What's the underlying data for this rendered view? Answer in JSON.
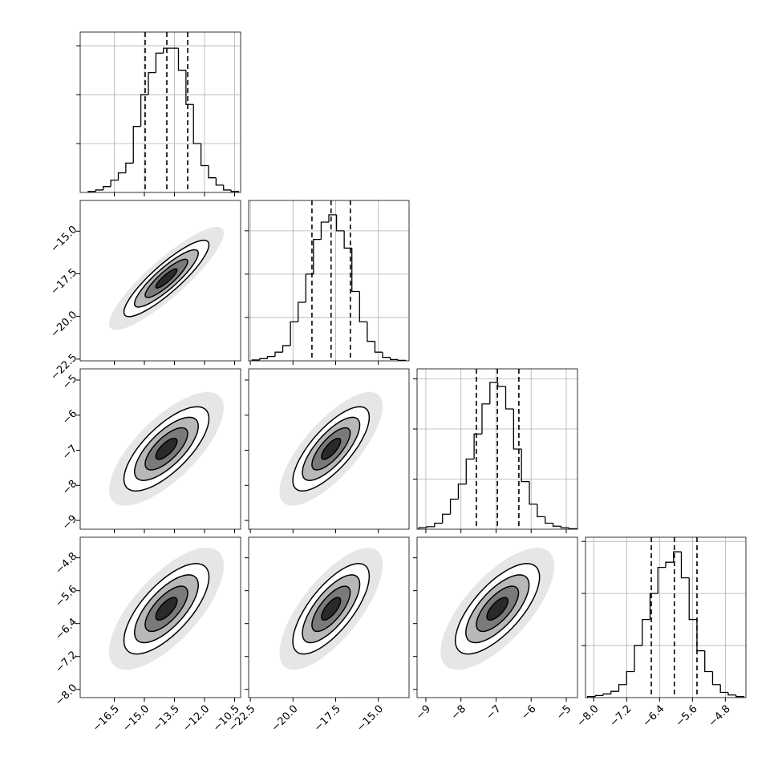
{
  "chart_data": {
    "type": "corner",
    "contour_levels": [
      0.5,
      1,
      1.5,
      2
    ],
    "correlations": [
      [
        0.88
      ],
      [
        0.72,
        0.75
      ],
      [
        0.7,
        0.72,
        0.7
      ]
    ],
    "parameters": [
      {
        "lim": [
          -18.2,
          -10.2
        ],
        "mean": -13.9,
        "sd": 1.06,
        "quantiles": [
          -14.96,
          -13.88,
          -12.84
        ],
        "ticks": [
          {
            "value": -16.5,
            "label": "−16.5"
          },
          {
            "value": -15,
            "label": "−15.0"
          },
          {
            "value": -13.5,
            "label": "−13.5"
          },
          {
            "value": -12,
            "label": "−12.0"
          },
          {
            "value": -10.5,
            "label": "−10.5"
          }
        ],
        "hist": {
          "ylim": [
            0,
            3.28
          ],
          "yticks": [
            1,
            2,
            3
          ],
          "bins": [
            -17.8,
            -17.425,
            -17.05,
            -16.675,
            -16.3,
            -15.925,
            -15.55,
            -15.175,
            -14.8,
            -14.425,
            -14.05,
            -13.675,
            -13.3,
            -12.925,
            -12.55,
            -12.175,
            -11.8,
            -11.425,
            -11.05,
            -10.675,
            -10.3
          ],
          "values": [
            0.02,
            0.05,
            0.12,
            0.25,
            0.4,
            0.6,
            1.35,
            2.0,
            2.45,
            2.85,
            2.95,
            2.95,
            2.5,
            1.8,
            1.0,
            0.55,
            0.3,
            0.15,
            0.05,
            0.02
          ]
        }
      },
      {
        "lim": [
          -22.6,
          -13.2
        ],
        "mean": -17.77,
        "sd": 1.12,
        "quantiles": [
          -18.89,
          -17.77,
          -16.64
        ],
        "ticks": [
          {
            "value": -22.5,
            "label": "−22.5"
          },
          {
            "value": -20,
            "label": "−20.0"
          },
          {
            "value": -17.5,
            "label": "−17.5"
          },
          {
            "value": -15,
            "label": "−15.0"
          }
        ],
        "hist": {
          "ylim": [
            0,
            3.7
          ],
          "yticks": [
            1,
            2,
            3
          ],
          "bins": [
            -22.4,
            -21.95,
            -21.5,
            -21.05,
            -20.6,
            -20.15,
            -19.7,
            -19.25,
            -18.8,
            -18.35,
            -17.9,
            -17.45,
            -17.0,
            -16.55,
            -16.1,
            -15.65,
            -15.2,
            -14.75,
            -14.3,
            -13.85,
            -13.4
          ],
          "values": [
            0.02,
            0.05,
            0.1,
            0.2,
            0.35,
            0.9,
            1.35,
            2.0,
            2.8,
            3.2,
            3.37,
            3.0,
            2.6,
            1.6,
            0.9,
            0.45,
            0.2,
            0.08,
            0.03,
            0.01
          ]
        }
      },
      {
        "lim": [
          -9.25,
          -4.68
        ],
        "mean": -6.96,
        "sd": 0.6,
        "quantiles": [
          -7.56,
          -6.96,
          -6.35
        ],
        "ticks": [
          {
            "value": -9,
            "label": "−9"
          },
          {
            "value": -8,
            "label": "−8"
          },
          {
            "value": -7,
            "label": "−7"
          },
          {
            "value": -6,
            "label": "−6"
          },
          {
            "value": -5,
            "label": "−5"
          }
        ],
        "hist": {
          "ylim": [
            0,
            3.2
          ],
          "yticks": [
            1,
            2,
            3
          ],
          "bins": [
            -9.2,
            -8.975,
            -8.75,
            -8.525,
            -8.3,
            -8.075,
            -7.85,
            -7.625,
            -7.4,
            -7.175,
            -6.95,
            -6.725,
            -6.5,
            -6.275,
            -6.05,
            -5.825,
            -5.6,
            -5.375,
            -5.15,
            -4.925,
            -4.7
          ],
          "values": [
            0.03,
            0.05,
            0.12,
            0.3,
            0.6,
            0.9,
            1.4,
            1.9,
            2.5,
            2.93,
            2.85,
            2.4,
            1.6,
            0.95,
            0.5,
            0.25,
            0.12,
            0.06,
            0.03,
            0.01
          ]
        }
      },
      {
        "lim": [
          -8.2,
          -4.3
        ],
        "mean": -6.04,
        "sd": 0.55,
        "quantiles": [
          -6.6,
          -6.04,
          -5.49
        ],
        "ticks": [
          {
            "value": -8,
            "label": "−8.0"
          },
          {
            "value": -7.2,
            "label": "−7.2"
          },
          {
            "value": -6.4,
            "label": "−6.4"
          },
          {
            "value": -5.6,
            "label": "−5.6"
          },
          {
            "value": -4.8,
            "label": "−4.8"
          }
        ],
        "hist": {
          "ylim": [
            0,
            3.08
          ],
          "yticks": [
            1,
            2,
            3
          ],
          "bins": [
            -8.15,
            -7.96,
            -7.77,
            -7.58,
            -7.39,
            -7.2,
            -7.01,
            -6.82,
            -6.63,
            -6.44,
            -6.25,
            -6.06,
            -5.87,
            -5.68,
            -5.49,
            -5.3,
            -5.11,
            -4.92,
            -4.73,
            -4.54,
            -4.35
          ],
          "values": [
            0.02,
            0.04,
            0.07,
            0.12,
            0.25,
            0.5,
            1.0,
            1.5,
            2.0,
            2.5,
            2.6,
            2.8,
            2.3,
            1.5,
            0.9,
            0.5,
            0.25,
            0.1,
            0.05,
            0.02
          ]
        }
      }
    ]
  }
}
